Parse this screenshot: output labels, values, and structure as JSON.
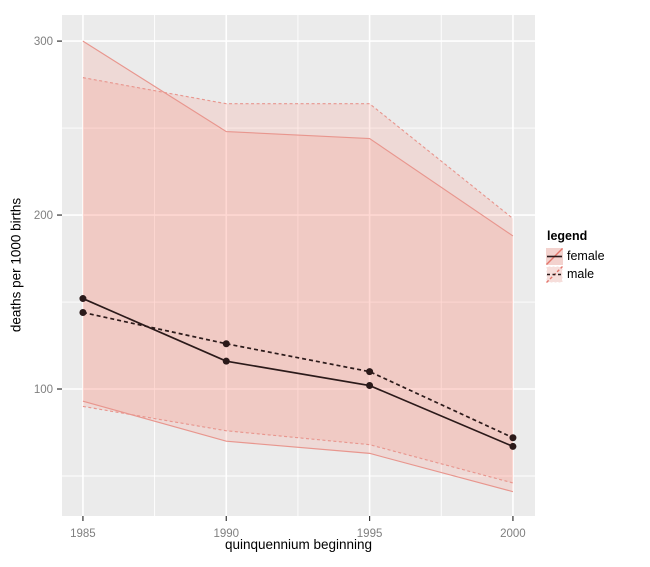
{
  "chart_data": {
    "type": "line",
    "title": "",
    "xlabel": "quinquennium beginning",
    "ylabel": "deaths per 1000 births",
    "x": [
      1985,
      1990,
      1995,
      2000
    ],
    "series": [
      {
        "name": "female",
        "linetype": "solid",
        "values": [
          152,
          116,
          102,
          67
        ],
        "ribbon_hi": [
          300,
          248,
          244,
          188
        ],
        "ribbon_lo": [
          93,
          70,
          63,
          41
        ]
      },
      {
        "name": "male",
        "linetype": "dashed",
        "values": [
          144,
          126,
          110,
          72
        ],
        "ribbon_hi": [
          279,
          264,
          264,
          198
        ],
        "ribbon_lo": [
          90,
          76,
          68,
          46
        ]
      }
    ],
    "x_ticks": [
      1985,
      1990,
      1995,
      2000
    ],
    "y_ticks": [
      100,
      200,
      300
    ],
    "x_minor": [
      1987.5,
      1992.5,
      1997.5
    ],
    "y_minor": [
      50,
      150,
      250
    ],
    "x_domain": [
      1984.27,
      2000.77
    ],
    "y_domain": [
      27,
      315
    ],
    "grid": true,
    "legend": {
      "position": "right",
      "title": "legend",
      "entries": [
        {
          "label": "female",
          "linetype": "solid"
        },
        {
          "label": "male",
          "linetype": "dashed"
        }
      ]
    },
    "colors": {
      "panel_bg": "#ebebeb",
      "grid": "#ffffff",
      "ribbon_fill": "rgba(254,122,104,0.16)",
      "ribbon_edge": "#e8968e",
      "line": "#2b1a1a",
      "tick_label": "#7f7f7f",
      "tick_mark": "#333333",
      "axis_title": "#000000"
    }
  }
}
